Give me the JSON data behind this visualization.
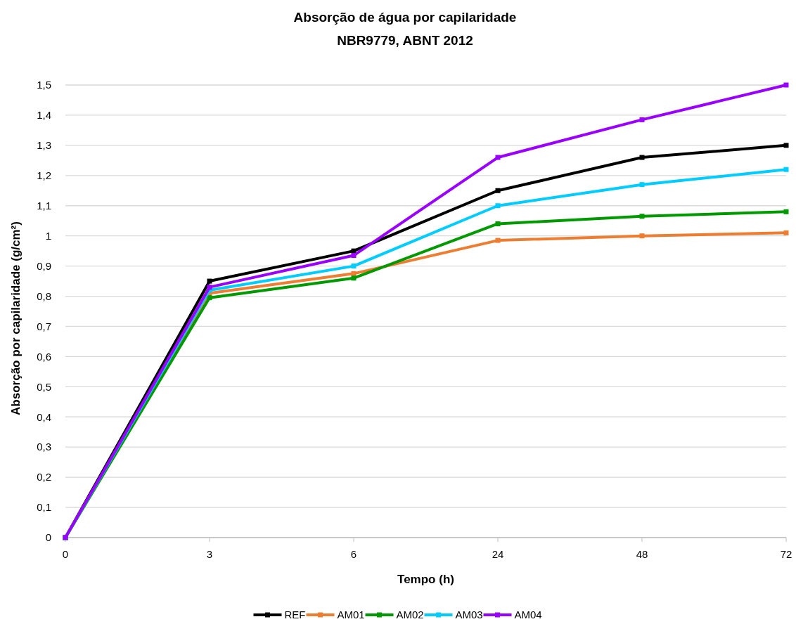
{
  "chart_data": {
    "type": "line",
    "title": "Absorção de água por capilaridade",
    "subtitle": "NBR9779, ABNT 2012",
    "xlabel": "Tempo (h)",
    "ylabel": "Absorção por capilaridade (g/cm²)",
    "categories": [
      "0",
      "3",
      "6",
      "24",
      "48",
      "72"
    ],
    "series": [
      {
        "name": "REF",
        "color": "#000000",
        "values": [
          0,
          0.85,
          0.95,
          1.15,
          1.26,
          1.3
        ]
      },
      {
        "name": "AM01",
        "color": "#ed7d31",
        "values": [
          0,
          0.81,
          0.875,
          0.985,
          1.0,
          1.01
        ]
      },
      {
        "name": "AM02",
        "color": "#009900",
        "values": [
          0,
          0.795,
          0.86,
          1.04,
          1.065,
          1.08
        ]
      },
      {
        "name": "AM03",
        "color": "#00ccff",
        "values": [
          0,
          0.82,
          0.9,
          1.1,
          1.17,
          1.22
        ]
      },
      {
        "name": "AM04",
        "color": "#9900ff",
        "values": [
          0,
          0.83,
          0.935,
          1.26,
          1.385,
          1.5
        ]
      }
    ],
    "ylim": [
      0,
      1.5
    ],
    "yticks": [
      0,
      {
        "value": 0.1,
        "label": "0,1"
      },
      {
        "value": 0.2,
        "label": "0,2"
      },
      {
        "value": 0.3,
        "label": "0,3"
      },
      {
        "value": 0.4,
        "label": "0,4"
      },
      {
        "value": 0.5,
        "label": "0,5"
      },
      {
        "value": 0.6,
        "label": "0,6"
      },
      {
        "value": 0.7,
        "label": "0,7"
      },
      {
        "value": 0.8,
        "label": "0,8"
      },
      {
        "value": 0.9,
        "label": "0,9"
      },
      1,
      {
        "value": 1.1,
        "label": "1,1"
      },
      {
        "value": 1.2,
        "label": "1,2"
      },
      {
        "value": 1.3,
        "label": "1,3"
      },
      {
        "value": 1.4,
        "label": "1,4"
      },
      {
        "value": 1.5,
        "label": "1,5"
      }
    ],
    "grid": "y",
    "legend": "bottom",
    "marker": "square",
    "line_style": "solid"
  }
}
